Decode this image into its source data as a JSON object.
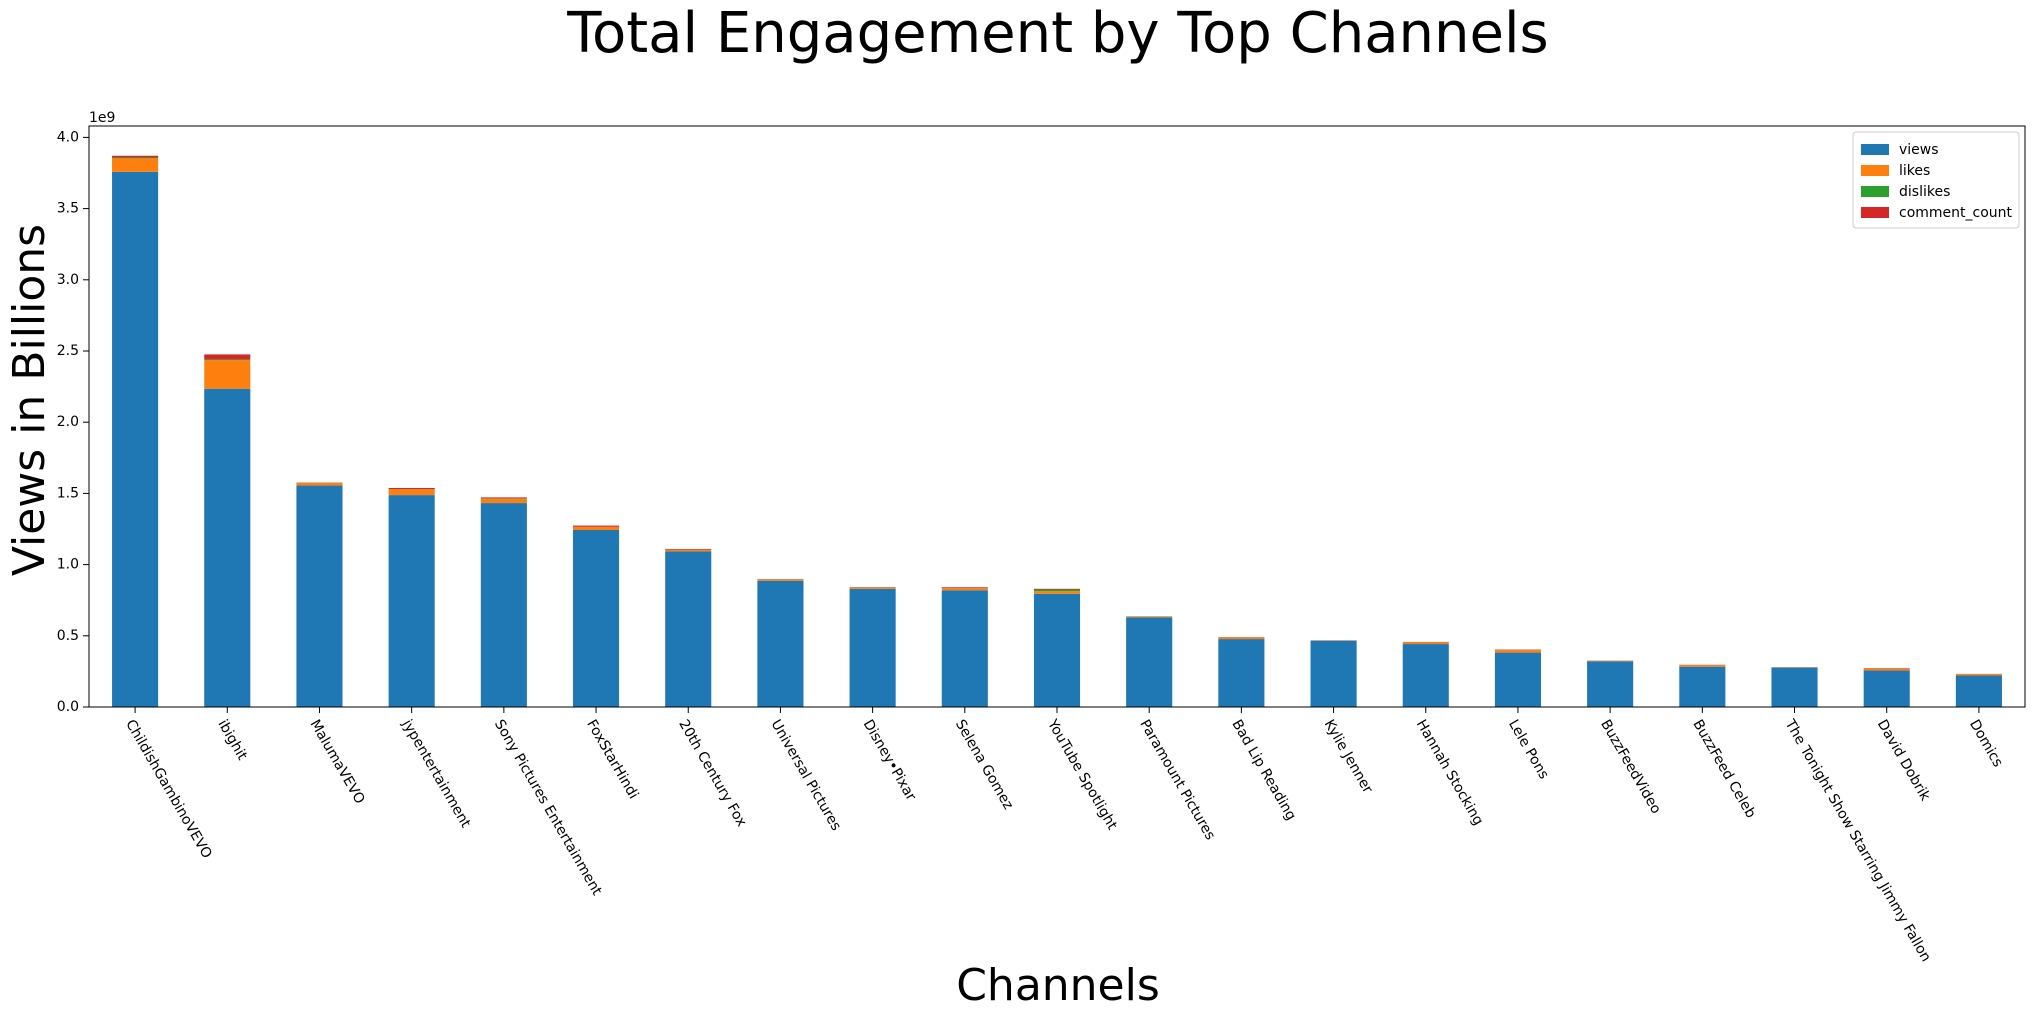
{
  "chart_data": {
    "type": "bar",
    "stacked": true,
    "title": "Total Engagement by Top Channels",
    "xlabel": "Channels",
    "ylabel": "Views in Billions",
    "y_offset_label": "1e9",
    "ylim": [
      0,
      4.08
    ],
    "yticks": [
      0.0,
      0.5,
      1.0,
      1.5,
      2.0,
      2.5,
      3.0,
      3.5,
      4.0
    ],
    "ytick_labels": [
      "0.0",
      "0.5",
      "1.0",
      "1.5",
      "2.0",
      "2.5",
      "3.0",
      "3.5",
      "4.0"
    ],
    "grid": false,
    "legend_position": "top-right",
    "categories": [
      "ChildishGambinoVEVO",
      "ibighit",
      "MalumaVEVO",
      "jypentertainment",
      "Sony Pictures Entertainment",
      "FoxStarHindi",
      "20th Century Fox",
      "Universal Pictures",
      "Disney•Pixar",
      "Selena Gomez",
      "YouTube Spotlight",
      "Paramount Pictures",
      "Bad Lip Reading",
      "Kylie Jenner",
      "Hannah Stocking",
      "Lele Pons",
      "BuzzFeedVideo",
      "BuzzFeed Celeb",
      "The Tonight Show Starring Jimmy Fallon",
      "David Dobrik",
      "Domics"
    ],
    "series": [
      {
        "name": "views",
        "color": "#1f77b4",
        "values": [
          3.758,
          2.235,
          1.555,
          1.488,
          1.432,
          1.243,
          1.093,
          0.886,
          0.83,
          0.819,
          0.795,
          0.63,
          0.477,
          0.466,
          0.442,
          0.382,
          0.321,
          0.283,
          0.277,
          0.256,
          0.221
        ]
      },
      {
        "name": "likes",
        "color": "#ff7f0e",
        "values": [
          0.095,
          0.2,
          0.018,
          0.04,
          0.03,
          0.022,
          0.012,
          0.009,
          0.009,
          0.016,
          0.018,
          0.005,
          0.011,
          0.002,
          0.012,
          0.017,
          0.004,
          0.011,
          0.002,
          0.014,
          0.01
        ]
      },
      {
        "name": "dislikes",
        "color": "#2ca02c",
        "values": [
          0.006,
          0.006,
          0.001,
          0.002,
          0.003,
          0.001,
          0.001,
          0.001,
          0.001,
          0.001,
          0.012,
          0.001,
          0.0005,
          0.0002,
          0.001,
          0.001,
          0.0005,
          0.0005,
          0.0002,
          0.001,
          0.0005
        ]
      },
      {
        "name": "comment_count",
        "color": "#d62728",
        "values": [
          0.012,
          0.035,
          0.002,
          0.008,
          0.007,
          0.008,
          0.004,
          0.002,
          0.002,
          0.005,
          0.005,
          0.001,
          0.002,
          0.0005,
          0.002,
          0.003,
          0.001,
          0.002,
          0.0005,
          0.002,
          0.001
        ]
      }
    ]
  }
}
